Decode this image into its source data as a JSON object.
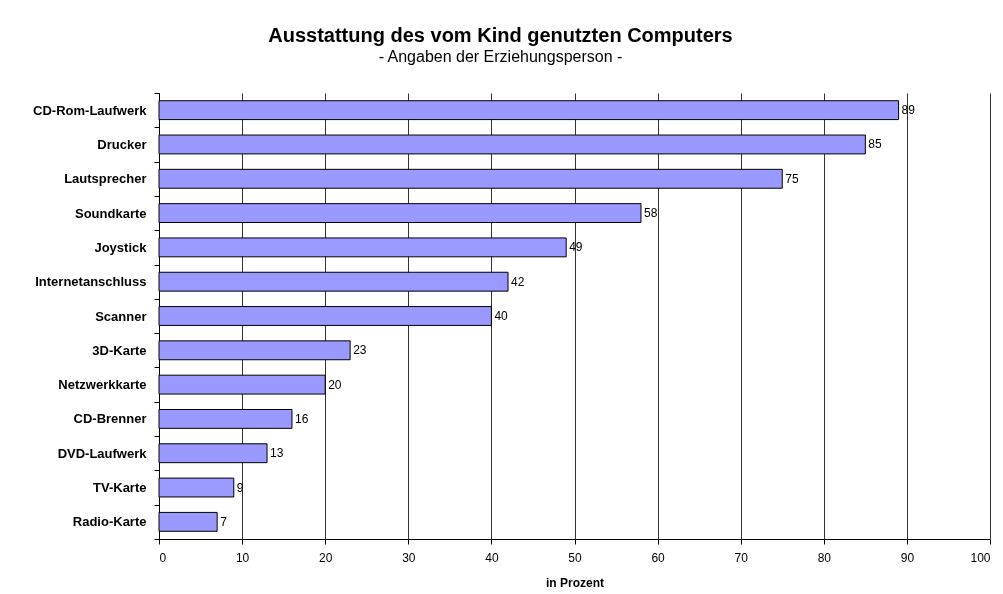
{
  "chart_data": {
    "type": "bar",
    "orientation": "horizontal",
    "title": "Ausstattung des vom Kind genutzten Computers",
    "subtitle": "- Angaben der Erziehungsperson -",
    "xlabel": "in Prozent",
    "categories": [
      "CD-Rom-Laufwerk",
      "Drucker",
      "Lautsprecher",
      "Soundkarte",
      "Joystick",
      "Internetanschluss",
      "Scanner",
      "3D-Karte",
      "Netzwerkkarte",
      "CD-Brenner",
      "DVD-Laufwerk",
      "TV-Karte",
      "Radio-Karte"
    ],
    "values": [
      89,
      85,
      75,
      58,
      49,
      42,
      40,
      23,
      20,
      16,
      13,
      9,
      7
    ],
    "color": "#9999ff",
    "xlim": [
      0,
      100
    ],
    "xticks": [
      0,
      10,
      20,
      30,
      40,
      50,
      60,
      70,
      80,
      90,
      100
    ],
    "grid": "x",
    "data_labels": true
  }
}
